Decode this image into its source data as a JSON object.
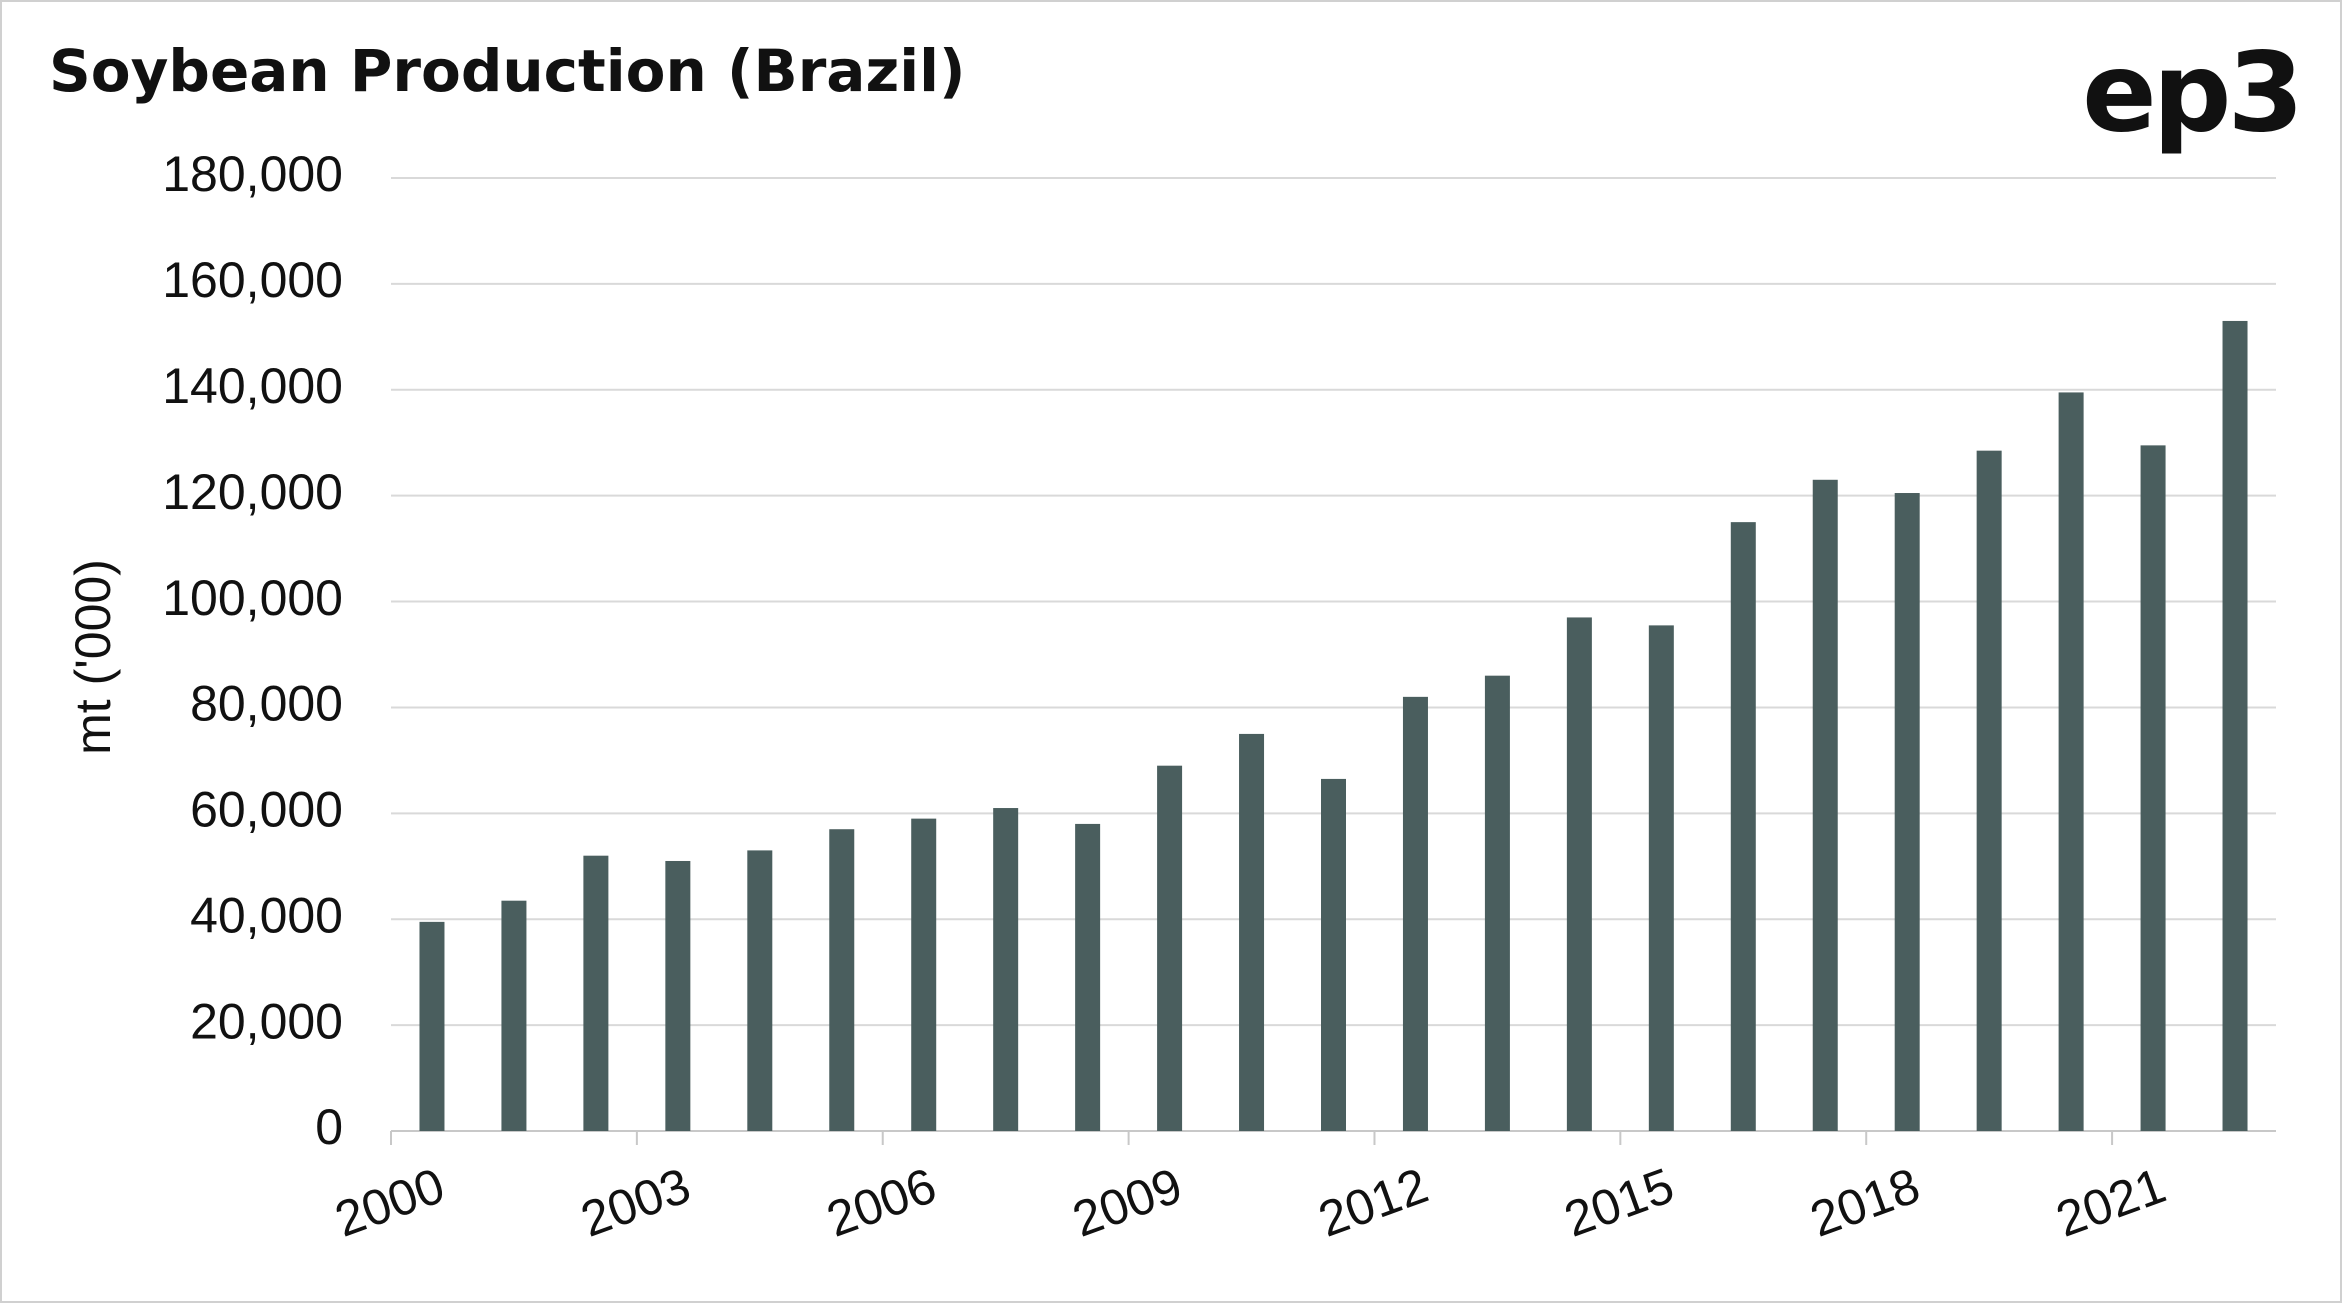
{
  "chart_data": {
    "type": "bar",
    "title": "Soybean Production (Brazil)",
    "logo": "ep3",
    "y_label": "mt ('000)",
    "categories": [
      "2000",
      null,
      null,
      "2003",
      null,
      null,
      "2006",
      null,
      null,
      "2009",
      null,
      null,
      "2012",
      null,
      null,
      "2015",
      null,
      null,
      "2018",
      null,
      null,
      "2021",
      null
    ],
    "values": [
      39500,
      43500,
      52000,
      51000,
      53000,
      57000,
      59000,
      61000,
      58000,
      69000,
      75000,
      66500,
      82000,
      86000,
      97000,
      95500,
      115000,
      123000,
      120500,
      128500,
      139500,
      129500,
      153000
    ],
    "color": "#4a5e5e",
    "ylim": [
      0,
      180000
    ],
    "yticks": [
      0,
      {
        "value": 20000,
        "label": "20,000"
      },
      {
        "value": 40000,
        "label": "40,000"
      },
      {
        "value": 60000,
        "label": "60,000"
      },
      {
        "value": 80000,
        "label": "80,000"
      },
      {
        "value": 100000,
        "label": "100,000"
      },
      {
        "value": 120000,
        "label": "120,000"
      },
      {
        "value": 140000,
        "label": "140,000"
      },
      {
        "value": 160000,
        "label": "160,000"
      },
      {
        "value": 180000,
        "label": "180,000"
      }
    ],
    "grid": true
  }
}
